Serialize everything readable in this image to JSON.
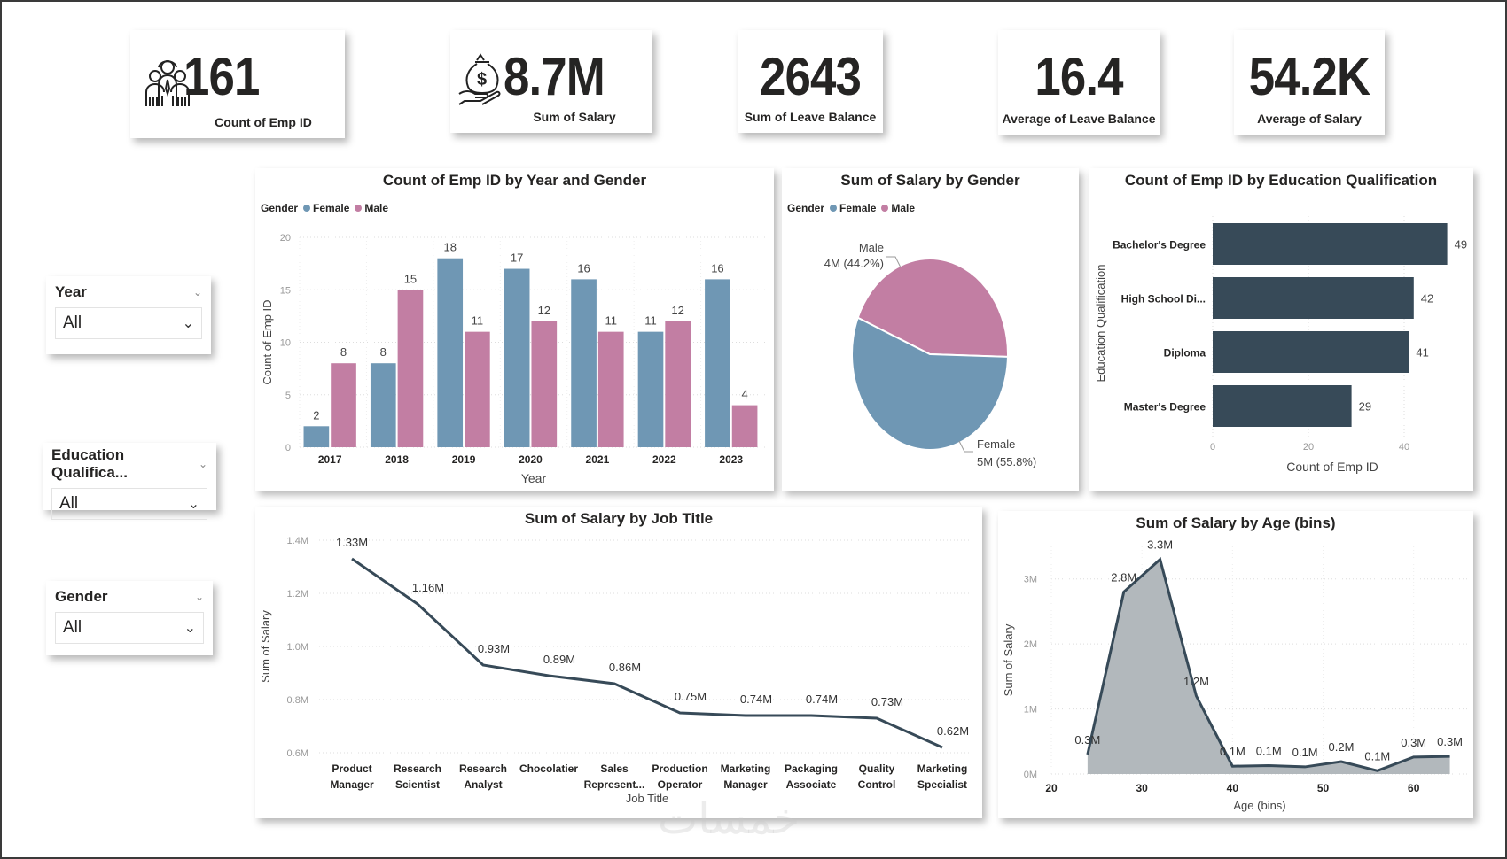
{
  "kpis": [
    {
      "value": "161",
      "label": "Count of Emp ID",
      "icon": "people-group-icon"
    },
    {
      "value": "8.7M",
      "label": "Sum of Salary",
      "icon": "money-bag-hand-icon"
    },
    {
      "value": "2643",
      "label": "Sum of Leave Balance"
    },
    {
      "value": "16.4",
      "label": "Average of Leave Balance"
    },
    {
      "value": "54.2K",
      "label": "Average of Salary"
    }
  ],
  "slicers": [
    {
      "title": "Year",
      "value": "All"
    },
    {
      "title": "Education Qualifica...",
      "value": "All"
    },
    {
      "title": "Gender",
      "value": "All"
    }
  ],
  "colors": {
    "female": "#6f97b4",
    "male": "#c27ea3",
    "dark": "#374a58",
    "area": "#b2b8bc"
  },
  "watermark": "خمسات",
  "chart_data": [
    {
      "id": "year_gender",
      "type": "bar",
      "title": "Count of Emp ID by Year and Gender",
      "legend_title": "Gender",
      "legend": [
        "Female",
        "Male"
      ],
      "legend_position": "top-left",
      "categories": [
        "2017",
        "2018",
        "2019",
        "2020",
        "2021",
        "2022",
        "2023"
      ],
      "series": [
        {
          "name": "Female",
          "values": [
            2,
            8,
            18,
            17,
            16,
            11,
            16
          ]
        },
        {
          "name": "Male",
          "values": [
            8,
            15,
            11,
            12,
            11,
            12,
            4
          ]
        }
      ],
      "xlabel": "Year",
      "ylabel": "Count of Emp ID",
      "ylim": [
        0,
        20
      ],
      "yticks": [
        "0",
        "5",
        "10",
        "15",
        "20"
      ],
      "grid": true
    },
    {
      "id": "salary_gender",
      "type": "pie",
      "title": "Sum of Salary by Gender",
      "legend_title": "Gender",
      "legend": [
        "Female",
        "Male"
      ],
      "legend_position": "top-left",
      "slices": [
        {
          "name": "Male",
          "label": "4M (44.2%)",
          "percent": 44.2
        },
        {
          "name": "Female",
          "label": "5M (55.8%)",
          "percent": 55.8
        }
      ]
    },
    {
      "id": "education",
      "type": "bar",
      "orientation": "horizontal",
      "title": "Count of Emp ID by Education Qualification",
      "categories": [
        "Bachelor's Degree",
        "High School Di...",
        "Diploma",
        "Master's Degree"
      ],
      "values": [
        49,
        42,
        41,
        29
      ],
      "xlabel": "Count of Emp ID",
      "ylabel": "Education Qualification",
      "xlim": [
        0,
        50
      ],
      "xticks": [
        "0",
        "20",
        "40"
      ],
      "grid": true
    },
    {
      "id": "job_title",
      "type": "line",
      "title": "Sum of Salary by Job Title",
      "categories": [
        [
          "Product",
          "Manager"
        ],
        [
          "Research",
          "Scientist"
        ],
        [
          "Research",
          "Analyst"
        ],
        [
          "Chocolatier",
          ""
        ],
        [
          "Sales",
          "Represent..."
        ],
        [
          "Production",
          "Operator"
        ],
        [
          "Marketing",
          "Manager"
        ],
        [
          "Packaging",
          "Associate"
        ],
        [
          "Quality",
          "Control"
        ],
        [
          "Marketing",
          "Specialist"
        ]
      ],
      "values": [
        1.33,
        1.16,
        0.93,
        0.89,
        0.86,
        0.75,
        0.74,
        0.74,
        0.73,
        0.62
      ],
      "labels": [
        "1.33M",
        "1.16M",
        "0.93M",
        "0.89M",
        "0.86M",
        "0.75M",
        "0.74M",
        "0.74M",
        "0.73M",
        "0.62M"
      ],
      "xlabel": "Job Title",
      "ylabel": "Sum of Salary",
      "ylim": [
        0.6,
        1.4
      ],
      "yticks": [
        "0.6M",
        "0.8M",
        "1.0M",
        "1.2M",
        "1.4M"
      ],
      "grid": true
    },
    {
      "id": "age_bins",
      "type": "area",
      "title": "Sum of Salary by Age (bins)",
      "x": [
        24,
        28,
        32,
        36,
        40,
        44,
        48,
        52,
        56,
        60,
        64
      ],
      "values": [
        0.3,
        2.8,
        3.3,
        1.2,
        0.12,
        0.13,
        0.11,
        0.19,
        0.05,
        0.26,
        0.27
      ],
      "labels": [
        "0.3M",
        "2.8M",
        "3.3M",
        "1.2M",
        "0.1M",
        "0.1M",
        "0.1M",
        "0.2M",
        "0.1M",
        "0.3M",
        "0.3M"
      ],
      "xlabel": "Age (bins)",
      "ylabel": "Sum of Salary",
      "xlim": [
        20,
        66
      ],
      "xticks": [
        "20",
        "30",
        "40",
        "50",
        "60"
      ],
      "ylim": [
        0,
        3.5
      ],
      "yticks": [
        "0M",
        "1M",
        "2M",
        "3M"
      ],
      "grid": true
    }
  ]
}
